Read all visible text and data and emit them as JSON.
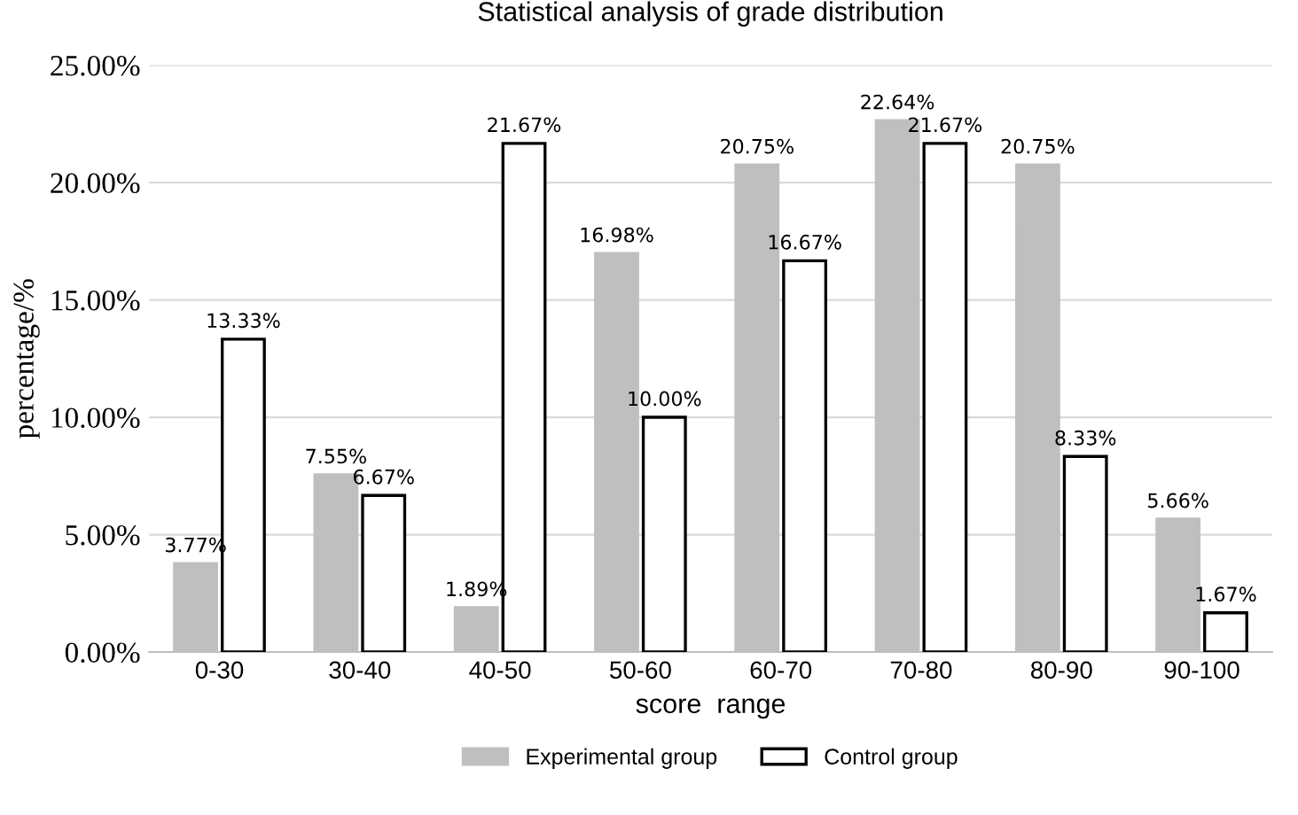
{
  "chart_data": {
    "type": "bar",
    "title": "Statistical analysis of grade distribution",
    "xlabel": "score  range",
    "ylabel": "percentage/%",
    "categories": [
      "0-30",
      "30-40",
      "40-50",
      "50-60",
      "60-70",
      "70-80",
      "80-90",
      "90-100"
    ],
    "series": [
      {
        "name": "Experimental group",
        "color": "#bfbfbf",
        "values": [
          3.77,
          7.55,
          1.89,
          16.98,
          20.75,
          22.64,
          20.75,
          5.66
        ],
        "value_labels": [
          "3.77%",
          "7.55%",
          "1.89%",
          "16.98%",
          "20.75%",
          "22.64%",
          "20.75%",
          "5.66%"
        ]
      },
      {
        "name": "Control group",
        "color": "#ffffff",
        "values": [
          13.33,
          6.67,
          21.67,
          10.0,
          16.67,
          21.67,
          8.33,
          1.67
        ],
        "value_labels": [
          "13.33%",
          "6.67%",
          "21.67%",
          "10.00%",
          "16.67%",
          "21.67%",
          "8.33%",
          "1.67%"
        ]
      }
    ],
    "ylim": [
      0,
      25
    ],
    "yticks": [
      {
        "value": 0,
        "label": "0.00%"
      },
      {
        "value": 5,
        "label": "5.00%"
      },
      {
        "value": 10,
        "label": "10.00%"
      },
      {
        "value": 15,
        "label": "15.00%"
      },
      {
        "value": 20,
        "label": "20.00%"
      },
      {
        "value": 25,
        "label": "25.00%"
      }
    ],
    "grid": "y",
    "legend": "bottom"
  }
}
